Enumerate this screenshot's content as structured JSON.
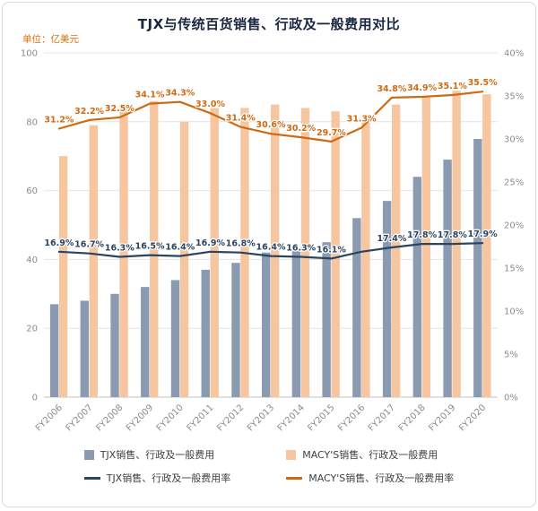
{
  "header": {
    "title": "TJX与传统百货销售、行政及一般费用对比",
    "unit_label": "单位：亿美元"
  },
  "chart_data": {
    "type": "bar",
    "subtype": "combo-bar-line-dual-axis",
    "title": "TJX与传统百货销售、行政及一般费用对比",
    "unit": "亿美元",
    "categories": [
      "FY2006",
      "FY2007",
      "FY2008",
      "FY2009",
      "FY2010",
      "FY2011",
      "FY2012",
      "FY2013",
      "FY2014",
      "FY2015",
      "FY2016",
      "FY2017",
      "FY2018",
      "FY2019",
      "FY2020"
    ],
    "bar_series": [
      {
        "name": "TJX销售、行政及一般费用",
        "axis": "left",
        "color": "#8a9ab1",
        "values": [
          27,
          28,
          30,
          32,
          34,
          37,
          39,
          42,
          43,
          45,
          52,
          57,
          64,
          69,
          75
        ]
      },
      {
        "name": "MACY'S销售、行政及一般费用",
        "axis": "left",
        "color": "#f6c6a0",
        "values": [
          70,
          79,
          85,
          86,
          80,
          84,
          84,
          85,
          84,
          83,
          80,
          85,
          87,
          89,
          88
        ]
      }
    ],
    "line_series": [
      {
        "name": "TJX销售、行政及一般费用率",
        "axis": "right",
        "color": "#2b4460",
        "values": [
          16.9,
          16.7,
          16.3,
          16.5,
          16.4,
          16.9,
          16.8,
          16.4,
          16.3,
          16.1,
          16.9,
          17.4,
          17.8,
          17.8,
          17.9
        ],
        "labels": [
          "16.9%",
          "16.7%",
          "16.3%",
          "16.5%",
          "16.4%",
          "16.9%",
          "16.8%",
          "16.4%",
          "16.3%",
          "16.1%",
          "",
          "17.4%",
          "17.8%",
          "17.8%",
          "17.9%"
        ]
      },
      {
        "name": "MACY'S销售、行政及一般费用率",
        "axis": "right",
        "color": "#cf6a12",
        "values": [
          31.2,
          32.2,
          32.5,
          34.1,
          34.3,
          33.0,
          31.4,
          30.6,
          30.2,
          29.7,
          31.3,
          34.8,
          34.9,
          35.1,
          35.5
        ],
        "labels": [
          "31.2%",
          "32.2%",
          "32.5%",
          "34.1%",
          "34.3%",
          "33.0%",
          "31.4%",
          "30.6%",
          "30.2%",
          "29.7%",
          "31.3%",
          "34.8%",
          "34.9%",
          "35.1%",
          "35.5%"
        ]
      }
    ],
    "left_axis": {
      "min": 0,
      "max": 100,
      "step": 20,
      "ticks": [
        "0",
        "20",
        "40",
        "60",
        "80",
        "100"
      ]
    },
    "right_axis": {
      "min": 0,
      "max": 40,
      "step": 5,
      "ticks": [
        "0%",
        "5%",
        "10%",
        "15%",
        "20%",
        "25%",
        "30%",
        "35%",
        "40%"
      ]
    },
    "grid": true,
    "legend_position": "bottom"
  }
}
